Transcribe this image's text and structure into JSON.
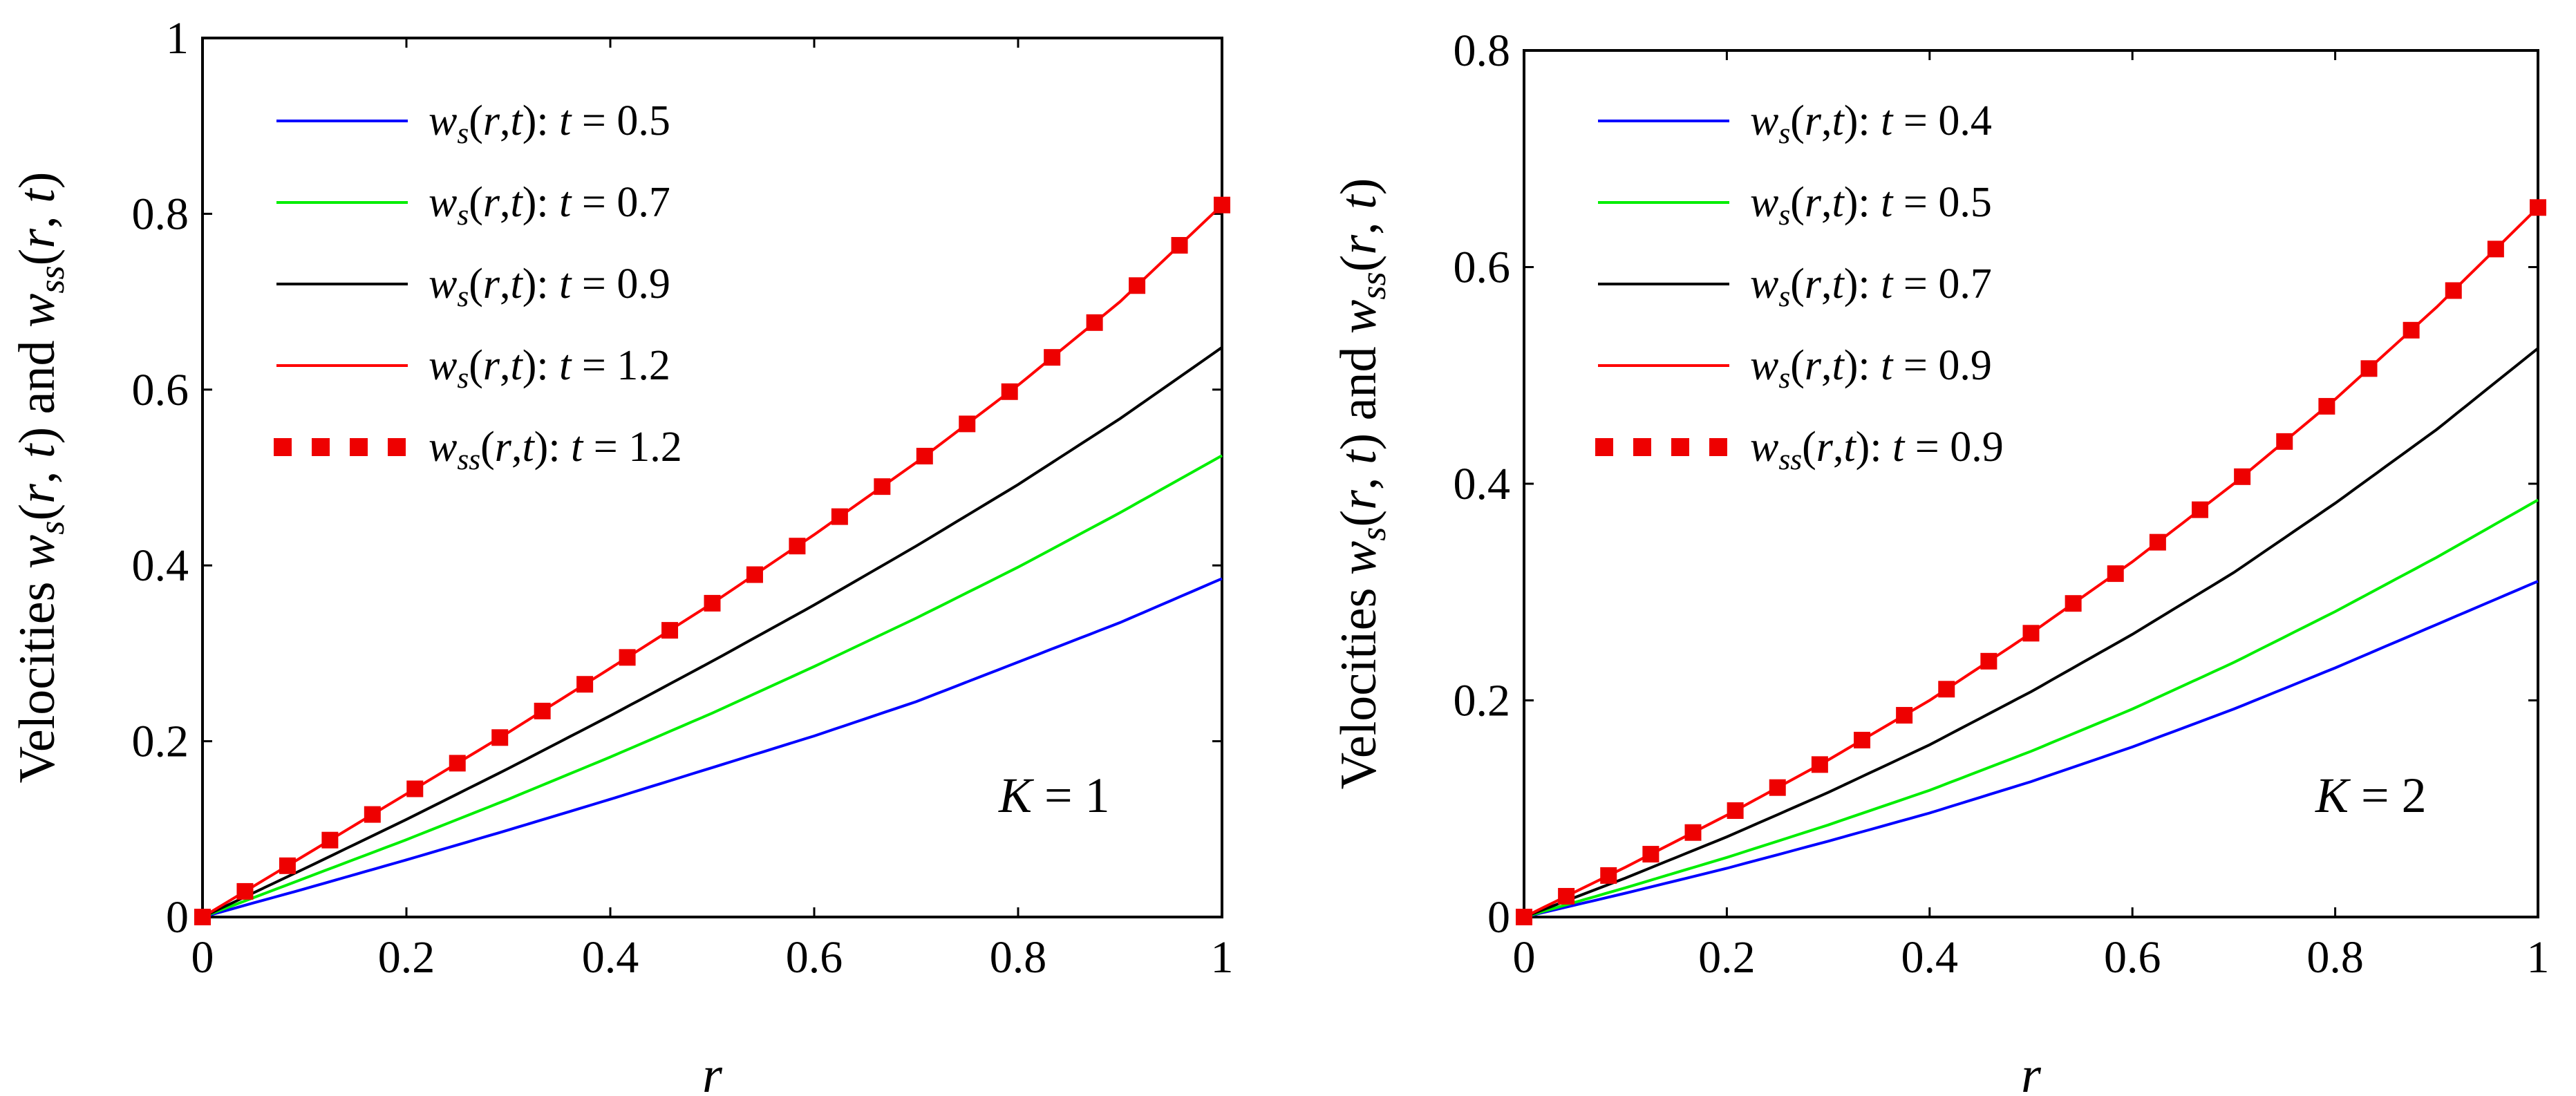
{
  "colors": {
    "blue": "#0000ff",
    "green": "#00ee00",
    "black": "#000000",
    "red": "#ff0000",
    "marker": "#ee0000"
  },
  "chart_data": [
    {
      "type": "line",
      "xlabel": "r",
      "ylabel": "Velocities w_s(r,t) and w_ss(r,t)",
      "xlim": [
        0,
        1
      ],
      "ylim": [
        0,
        1
      ],
      "xticks": [
        "0",
        "0.2",
        "0.4",
        "0.6",
        "0.8",
        "1"
      ],
      "yticks": [
        "0",
        "0.2",
        "0.4",
        "0.6",
        "0.8",
        "1"
      ],
      "annotation": "K = 1",
      "legend_position": "top-left",
      "x": [
        0,
        0.1,
        0.2,
        0.3,
        0.4,
        0.5,
        0.6,
        0.7,
        0.8,
        0.9,
        1.0
      ],
      "series": [
        {
          "name": "w_s(r,t): t = 0.5",
          "color": "#0000ff",
          "style": "line",
          "values": [
            0,
            0.032,
            0.065,
            0.099,
            0.134,
            0.17,
            0.206,
            0.245,
            0.29,
            0.335,
            0.385
          ]
        },
        {
          "name": "w_s(r,t): t = 0.7",
          "color": "#00ee00",
          "style": "line",
          "values": [
            0,
            0.044,
            0.088,
            0.134,
            0.182,
            0.232,
            0.285,
            0.34,
            0.398,
            0.46,
            0.525
          ]
        },
        {
          "name": "w_s(r,t): t = 0.9",
          "color": "#000000",
          "style": "line",
          "values": [
            0,
            0.055,
            0.111,
            0.169,
            0.229,
            0.291,
            0.355,
            0.422,
            0.492,
            0.567,
            0.648
          ]
        },
        {
          "name": "w_s(r,t): t = 1.2",
          "color": "#ff0000",
          "style": "line",
          "values": [
            0,
            0.07,
            0.14,
            0.21,
            0.283,
            0.357,
            0.435,
            0.517,
            0.605,
            0.7,
            0.81
          ]
        },
        {
          "name": "w_ss(r,t): t = 1.2",
          "color": "#ee0000",
          "style": "markers",
          "values": [
            0,
            0.07,
            0.14,
            0.21,
            0.283,
            0.357,
            0.435,
            0.517,
            0.605,
            0.7,
            0.81
          ]
        }
      ]
    },
    {
      "type": "line",
      "xlabel": "r",
      "ylabel": "Velocities w_s(r,t) and w_ss(r,t)",
      "xlim": [
        0,
        1
      ],
      "ylim": [
        0,
        0.8
      ],
      "xticks": [
        "0",
        "0.2",
        "0.4",
        "0.6",
        "0.8",
        "1"
      ],
      "yticks": [
        "0",
        "0.2",
        "0.4",
        "0.6",
        "0.8"
      ],
      "annotation": "K = 2",
      "legend_position": "top-left",
      "x": [
        0,
        0.1,
        0.2,
        0.3,
        0.4,
        0.5,
        0.6,
        0.7,
        0.8,
        0.9,
        1.0
      ],
      "series": [
        {
          "name": "w_s(r,t): t = 0.4",
          "color": "#0000ff",
          "style": "line",
          "values": [
            0,
            0.022,
            0.045,
            0.07,
            0.096,
            0.125,
            0.157,
            0.192,
            0.23,
            0.27,
            0.31
          ]
        },
        {
          "name": "w_s(r,t): t = 0.5",
          "color": "#00ee00",
          "style": "line",
          "values": [
            0,
            0.027,
            0.055,
            0.085,
            0.117,
            0.153,
            0.192,
            0.235,
            0.282,
            0.332,
            0.385
          ]
        },
        {
          "name": "w_s(r,t): t = 0.7",
          "color": "#000000",
          "style": "line",
          "values": [
            0,
            0.036,
            0.074,
            0.115,
            0.159,
            0.208,
            0.261,
            0.318,
            0.382,
            0.45,
            0.525
          ]
        },
        {
          "name": "w_s(r,t): t = 0.9",
          "color": "#ff0000",
          "style": "line",
          "values": [
            0,
            0.046,
            0.094,
            0.145,
            0.2,
            0.262,
            0.328,
            0.4,
            0.478,
            0.563,
            0.655
          ]
        },
        {
          "name": "w_ss(r,t): t = 0.9",
          "color": "#ee0000",
          "style": "markers",
          "values": [
            0,
            0.046,
            0.094,
            0.145,
            0.2,
            0.262,
            0.328,
            0.4,
            0.478,
            0.563,
            0.655
          ]
        }
      ]
    }
  ]
}
